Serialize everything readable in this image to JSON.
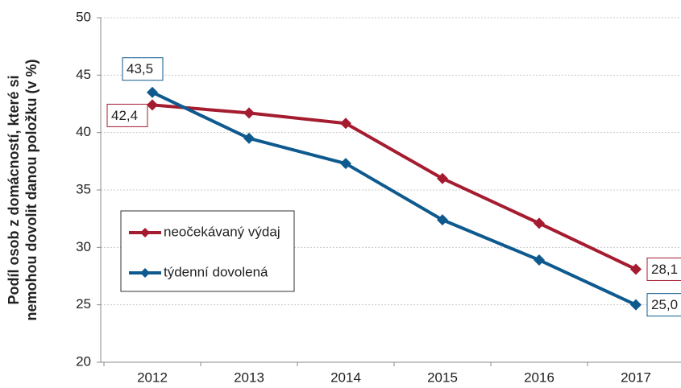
{
  "chart_data": {
    "type": "line",
    "ylabel": [
      "Podíl osob z domácností, které si",
      "nemohou dovolit danou položku (v %)"
    ],
    "categories": [
      "2012",
      "2013",
      "2014",
      "2015",
      "2016",
      "2017"
    ],
    "series": [
      {
        "name": "neočekávaný výdaj",
        "color": "#a51c30",
        "values": [
          42.4,
          41.7,
          40.8,
          36.0,
          32.1,
          28.1
        ],
        "value_labels": [
          "42,4",
          null,
          null,
          null,
          null,
          "28,1"
        ]
      },
      {
        "name": "týdenní dovolená",
        "color": "#0e5a8e",
        "values": [
          43.5,
          39.5,
          37.3,
          32.4,
          28.9,
          25.0
        ],
        "value_labels": [
          "43,5",
          null,
          null,
          null,
          null,
          "25,0"
        ]
      }
    ],
    "ylim": [
      20,
      50
    ],
    "yticks": [
      20,
      25,
      30,
      35,
      40,
      45,
      50
    ],
    "grid": true
  }
}
